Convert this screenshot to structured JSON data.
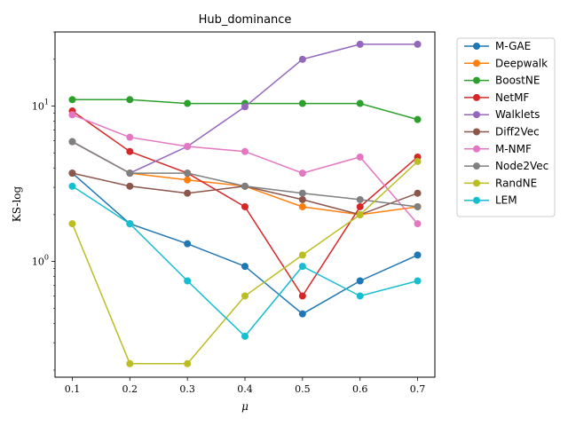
{
  "chart_data": {
    "type": "line",
    "title": "Hub_dominance",
    "xlabel": "μ",
    "ylabel": "KS-log",
    "yscale": "log",
    "xlim": [
      0.07,
      0.73
    ],
    "ylim": [
      0.18,
      30
    ],
    "x": [
      0.1,
      0.2,
      0.3,
      0.4,
      0.5,
      0.6,
      0.7
    ],
    "xticks": [
      "0.1",
      "0.2",
      "0.3",
      "0.4",
      "0.5",
      "0.6",
      "0.7"
    ],
    "yticks": [
      {
        "value": 1,
        "base": "10",
        "exp": "0"
      },
      {
        "value": 10,
        "base": "10",
        "exp": "1"
      }
    ],
    "grid": false,
    "legend_position": "outside-right",
    "series": [
      {
        "name": "M-GAE",
        "color": "#1f77b4",
        "values": [
          3.7,
          1.75,
          1.3,
          0.93,
          0.46,
          0.75,
          1.1
        ]
      },
      {
        "name": "Deepwalk",
        "color": "#ff7f0e",
        "values": [
          5.9,
          3.7,
          3.35,
          3.05,
          2.25,
          2.0,
          2.25
        ]
      },
      {
        "name": "BoostNE",
        "color": "#2ca02c",
        "values": [
          11.0,
          11.0,
          10.4,
          10.4,
          10.4,
          10.4,
          8.2
        ]
      },
      {
        "name": "NetMF",
        "color": "#d62728",
        "values": [
          9.3,
          5.1,
          3.7,
          2.25,
          0.6,
          2.25,
          4.7
        ]
      },
      {
        "name": "Walklets",
        "color": "#9467bd",
        "values": [
          5.9,
          3.7,
          5.5,
          9.9,
          20.0,
          25.0,
          25.0
        ]
      },
      {
        "name": "Diff2Vec",
        "color": "#8c564b",
        "values": [
          3.7,
          3.05,
          2.75,
          3.05,
          2.5,
          2.0,
          2.75
        ]
      },
      {
        "name": "M-NMF",
        "color": "#e377c2",
        "values": [
          8.8,
          6.3,
          5.5,
          5.1,
          3.7,
          4.7,
          1.75
        ]
      },
      {
        "name": "Node2Vec",
        "color": "#7f7f7f",
        "values": [
          5.9,
          3.7,
          3.7,
          3.05,
          2.75,
          2.5,
          2.25
        ]
      },
      {
        "name": "RandNE",
        "color": "#bcbd22",
        "values": [
          1.75,
          0.22,
          0.22,
          0.6,
          1.1,
          2.0,
          4.4
        ]
      },
      {
        "name": "LEM",
        "color": "#17becf",
        "values": [
          3.05,
          1.75,
          0.75,
          0.33,
          0.93,
          0.6,
          0.75
        ]
      }
    ]
  }
}
